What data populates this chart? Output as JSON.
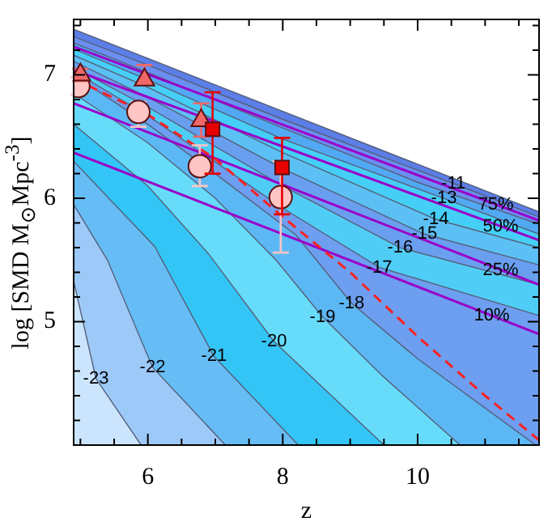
{
  "chart_data": {
    "type": "area",
    "xlabel": "z",
    "ylabel": "log [SMD M$_{⊙}$Mpc$^{-3}$]",
    "xlim": [
      4.9,
      11.8
    ],
    "ylim": [
      4,
      7.45
    ],
    "xticks": [
      {
        "value": 5,
        "label": null
      },
      {
        "value": 5.5,
        "label": null
      },
      6,
      {
        "value": 6.5,
        "label": null
      },
      {
        "value": 7,
        "label": null
      },
      {
        "value": 7.5,
        "label": null
      },
      8,
      {
        "value": 8.5,
        "label": null
      },
      {
        "value": 9,
        "label": null
      },
      {
        "value": 9.5,
        "label": null
      },
      10,
      {
        "value": 10.5,
        "label": null
      },
      {
        "value": 11,
        "label": null
      },
      {
        "value": 11.5,
        "label": null
      }
    ],
    "yticks": [
      {
        "value": 4.2,
        "label": null
      },
      {
        "value": 4.4,
        "label": null
      },
      {
        "value": 4.6,
        "label": null
      },
      {
        "value": 4.8,
        "label": null
      },
      5,
      {
        "value": 5.2,
        "label": null
      },
      {
        "value": 5.4,
        "label": null
      },
      {
        "value": 5.6,
        "label": null
      },
      {
        "value": 5.8,
        "label": null
      },
      6,
      {
        "value": 6.2,
        "label": null
      },
      {
        "value": 6.4,
        "label": null
      },
      {
        "value": 6.6,
        "label": null
      },
      {
        "value": 6.8,
        "label": null
      },
      7,
      {
        "value": 7.2,
        "label": null
      },
      {
        "value": 7.4,
        "label": null
      }
    ],
    "series": [
      {
        "type": "area",
        "color": "#5b7ee8",
        "x": [
          4.9,
          11.8
        ],
        "values": [
          7.37,
          5.89
        ]
      },
      {
        "type": "area",
        "color": "#6a8ff0",
        "x": [
          4.9,
          6,
          8,
          10.53,
          11.8
        ],
        "values": [
          7.31,
          7.08,
          6.64,
          6.12,
          5.85
        ]
      },
      {
        "type": "area",
        "color": "#52a9f3",
        "x": [
          4.9,
          6,
          8,
          10,
          11.8
        ],
        "values": [
          7.26,
          7.02,
          6.57,
          6.13,
          5.79
        ]
      },
      {
        "type": "area",
        "color": "#45cff7",
        "x": [
          4.9,
          6,
          8,
          10.39,
          11.8
        ],
        "values": [
          7.21,
          6.96,
          6.48,
          6.0,
          5.71
        ]
      },
      {
        "type": "area",
        "color": "#5cc0f5",
        "x": [
          4.9,
          6,
          8,
          10.27,
          11.8
        ],
        "values": [
          7.16,
          6.9,
          6.37,
          5.83,
          5.6
        ]
      },
      {
        "type": "area",
        "color": "#6a9ff0",
        "x": [
          4.9,
          6,
          8,
          10.1,
          11.8
        ],
        "values": [
          7.11,
          6.82,
          6.24,
          5.71,
          5.46
        ]
      },
      {
        "type": "area",
        "color": "#50cdf7",
        "x": [
          4.9,
          6,
          8,
          9.74,
          11.8
        ],
        "values": [
          7.06,
          6.74,
          6.1,
          5.6,
          5.3
        ]
      },
      {
        "type": "area",
        "color": "#6d9ef0",
        "x": [
          4.9,
          6,
          8,
          9.43,
          11.8
        ],
        "values": [
          7.03,
          6.67,
          5.92,
          5.44,
          5.05
        ]
      },
      {
        "type": "area",
        "color": "#5cb8f4",
        "x": [
          4.9,
          6,
          7,
          8.2,
          9.02,
          10,
          11.75
        ],
        "values": [
          7.0,
          6.6,
          6.2,
          5.7,
          5.15,
          4.7,
          4.0
        ]
      },
      {
        "type": "area",
        "color": "#66dcfa",
        "x": [
          4.9,
          6,
          7,
          7.9,
          8.59,
          9.5,
          10.63
        ],
        "values": [
          6.85,
          6.45,
          6.0,
          5.5,
          5.04,
          4.55,
          4.0
        ]
      },
      {
        "type": "area",
        "color": "#33c5f5",
        "x": [
          4.9,
          6,
          6.9,
          7.87,
          9.5
        ],
        "values": [
          6.6,
          6.1,
          5.55,
          4.84,
          4.0
        ]
      },
      {
        "type": "area",
        "color": "#66bdf5",
        "x": [
          4.9,
          6.1,
          6.98,
          8.23
        ],
        "values": [
          6.3,
          5.61,
          4.72,
          4.0
        ]
      },
      {
        "type": "area",
        "color": "#9dc9f9",
        "x": [
          4.9,
          5.4,
          6.07,
          7.15
        ],
        "values": [
          5.95,
          5.5,
          4.63,
          4.0
        ]
      },
      {
        "type": "area",
        "color": "#cce5ff",
        "x": [
          4.9,
          5.23,
          5.9
        ],
        "values": [
          5.33,
          4.54,
          4.0
        ]
      },
      {
        "type": "line",
        "color": "#9a00c8",
        "x": [
          4.9,
          11.8
        ],
        "values": [
          7.23,
          5.82
        ]
      },
      {
        "type": "line",
        "color": "#9a00c8",
        "x": [
          4.9,
          11.8
        ],
        "values": [
          7.04,
          5.66
        ]
      },
      {
        "type": "line",
        "color": "#9a00c8",
        "x": [
          4.9,
          11.8
        ],
        "values": [
          6.77,
          5.3
        ]
      },
      {
        "type": "line",
        "color": "#9a00c8",
        "x": [
          4.9,
          11.8
        ],
        "values": [
          6.37,
          4.9
        ]
      },
      {
        "type": "line",
        "color": "#ff2020",
        "line_style": "dashed",
        "x": [
          4.9,
          6,
          7,
          8,
          9,
          10,
          11,
          11.8
        ],
        "values": [
          6.97,
          6.68,
          6.32,
          5.85,
          5.4,
          4.88,
          4.4,
          4.04
        ]
      },
      {
        "type": "scatter",
        "color": "#ffc4c4",
        "marker": "circle",
        "x": [
          4.97,
          5.86,
          6.77,
          7.97
        ],
        "values": [
          6.91,
          6.7,
          6.26,
          6.01
        ],
        "errors": [
          [
            6.84,
            6.98
          ],
          [
            6.58,
            6.78
          ],
          [
            6.1,
            6.43
          ],
          [
            5.56,
            6.3
          ]
        ]
      },
      {
        "type": "scatter",
        "color": "#f06868",
        "marker": "triangle",
        "x": [
          5.0,
          5.95,
          6.79
        ],
        "values": [
          7.0,
          6.96,
          6.63
        ],
        "errors": [
          [
            6.95,
            7.05
          ],
          [
            6.93,
            7.08
          ],
          [
            6.5,
            6.77
          ]
        ]
      },
      {
        "type": "scatter",
        "color": "#e80000",
        "marker": "square",
        "x": [
          6.96,
          7.99
        ],
        "values": [
          6.56,
          6.25
        ],
        "errors": [
          [
            6.2,
            6.86
          ],
          [
            5.87,
            6.49
          ]
        ]
      }
    ],
    "annotations": [
      {
        "text": "-11",
        "x": 10.53,
        "y": 6.12
      },
      {
        "text": "-13",
        "x": 10.39,
        "y": 6.0
      },
      {
        "text": "-14",
        "x": 10.27,
        "y": 5.83
      },
      {
        "text": "-15",
        "x": 10.1,
        "y": 5.71
      },
      {
        "text": "-16",
        "x": 9.74,
        "y": 5.6
      },
      {
        "text": "-17",
        "x": 9.43,
        "y": 5.44
      },
      {
        "text": "-18",
        "x": 9.02,
        "y": 5.15
      },
      {
        "text": "-19",
        "x": 8.59,
        "y": 5.04
      },
      {
        "text": "-20",
        "x": 7.87,
        "y": 4.84
      },
      {
        "text": "-21",
        "x": 6.98,
        "y": 4.72
      },
      {
        "text": "-22",
        "x": 6.07,
        "y": 4.63
      },
      {
        "text": "-23",
        "x": 5.23,
        "y": 4.54
      },
      {
        "text": "75%",
        "x": 11.16,
        "y": 5.95
      },
      {
        "text": "50%",
        "x": 11.23,
        "y": 5.77
      },
      {
        "text": "25%",
        "x": 11.23,
        "y": 5.42
      },
      {
        "text": "10%",
        "x": 11.1,
        "y": 5.05
      }
    ]
  }
}
